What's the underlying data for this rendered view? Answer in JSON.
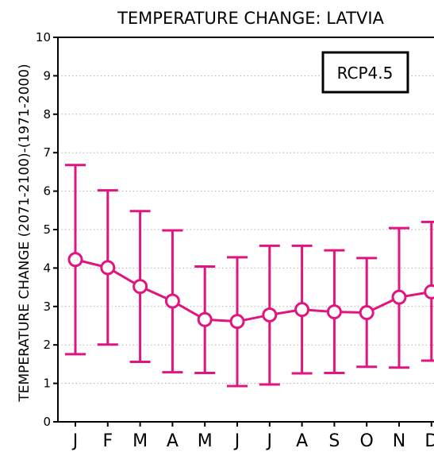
{
  "chart_data": {
    "type": "line",
    "title": "TEMPERATURE CHANGE: LATVIA",
    "ylabel": "TEMPERATURE CHANGE (2071-2100)-(1971-2000)",
    "xlabel": "",
    "legend_box": "RCP4.5",
    "categories": [
      "J",
      "F",
      "M",
      "A",
      "M",
      "J",
      "J",
      "A",
      "S",
      "O",
      "N",
      "D"
    ],
    "yticks": [
      "0",
      "1",
      "2",
      "3",
      "4",
      "5",
      "6",
      "7",
      "8",
      "9",
      "10"
    ],
    "ylim": [
      0,
      10
    ],
    "grid": "horizontal dotted",
    "series": [
      {
        "values": [
          4.22,
          4.01,
          3.52,
          3.14,
          2.66,
          2.61,
          2.78,
          2.92,
          2.86,
          2.84,
          3.24,
          3.38
        ],
        "upper": [
          6.68,
          6.02,
          5.48,
          4.98,
          4.04,
          4.28,
          4.58,
          4.58,
          4.46,
          4.26,
          5.04,
          5.2
        ],
        "lower": [
          1.76,
          2.01,
          1.56,
          1.29,
          1.27,
          0.93,
          0.97,
          1.26,
          1.27,
          1.43,
          1.41,
          1.59
        ]
      }
    ],
    "color": "#e0157f"
  }
}
